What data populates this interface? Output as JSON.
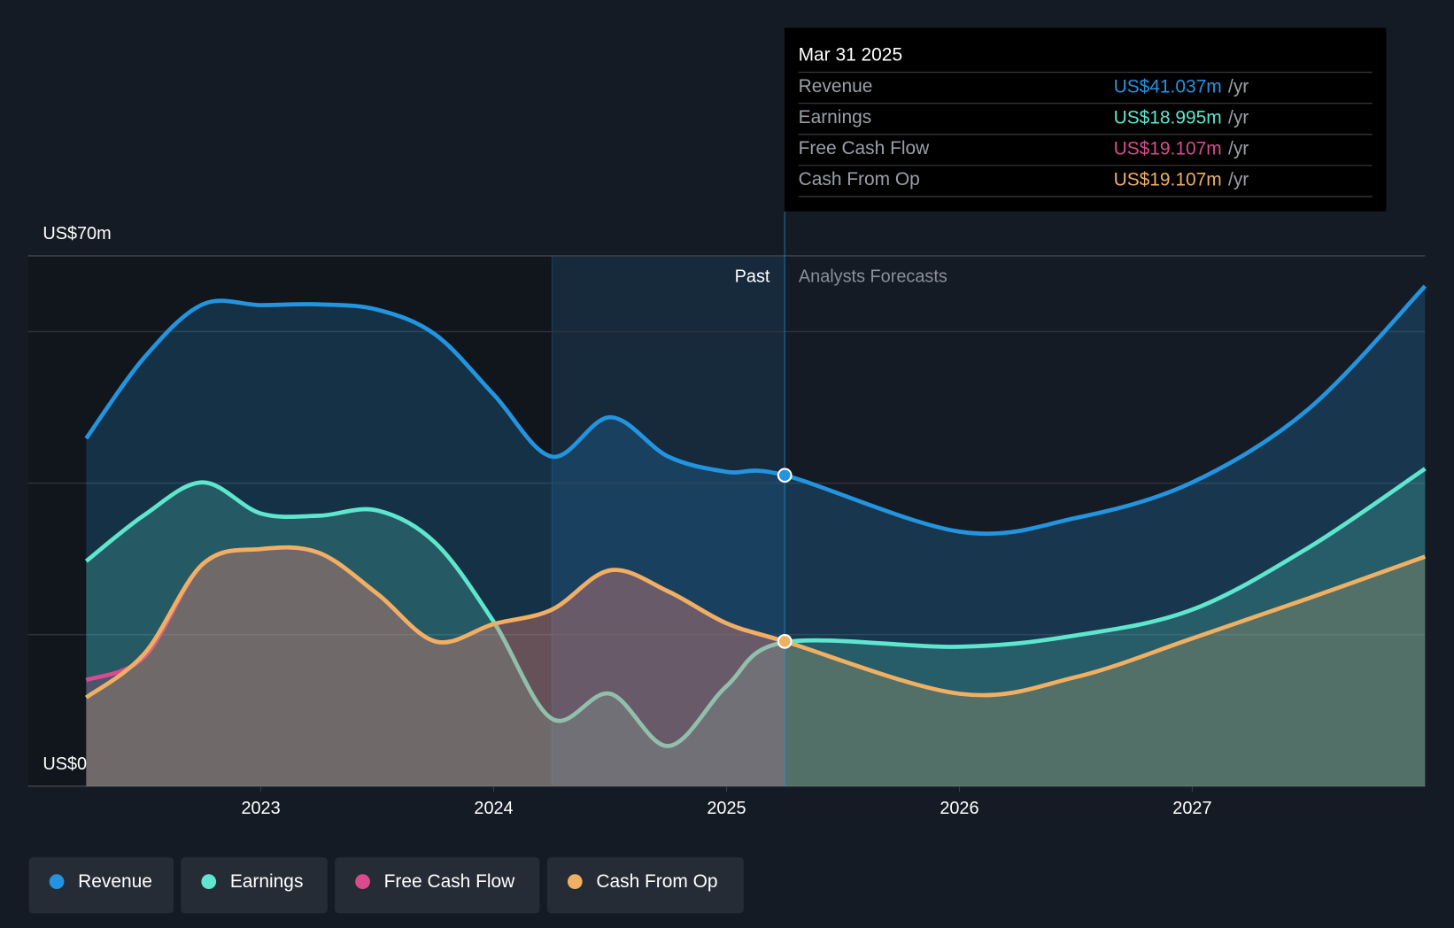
{
  "chart_data": {
    "type": "area-line",
    "x": [
      2022.25,
      2022.5,
      2022.75,
      2023,
      2023.25,
      2023.5,
      2023.75,
      2024,
      2024.25,
      2024.5,
      2024.75,
      2025,
      2025.25,
      2026,
      2026.5,
      2027,
      2027.5,
      2028
    ],
    "xlim": [
      2022,
      2028
    ],
    "xticks": [
      2023,
      2024,
      2025,
      2026,
      2027
    ],
    "ylim": [
      0,
      70
    ],
    "yticks": [
      {
        "value": 0,
        "label": "US$0"
      },
      {
        "value": 70,
        "label": "US$70m"
      }
    ],
    "ygrid": [
      20,
      40,
      60
    ],
    "past_label": "Past",
    "forecast_label": "Analysts Forecasts",
    "past_end": 2025.25,
    "highlight_start": 2024.25,
    "series": [
      {
        "name": "Revenue",
        "color": "#2394df",
        "values": [
          45.9,
          56.6,
          63.6,
          63.5,
          63.6,
          62.9,
          59.6,
          51.7,
          43.5,
          48.7,
          43.5,
          41.5,
          41.037,
          33.6,
          35.4,
          40.1,
          49.8,
          66.0
        ]
      },
      {
        "name": "Earnings",
        "color": "#5ee6cf",
        "values": [
          29.7,
          35.8,
          40.1,
          36.0,
          35.7,
          36.4,
          32.1,
          21.7,
          8.9,
          12.2,
          5.3,
          13.2,
          18.995,
          18.4,
          19.9,
          23.3,
          31.5,
          41.9
        ]
      },
      {
        "name": "Free Cash Flow",
        "color": "#d94b8d",
        "values": [
          14.0,
          17.1,
          29.3,
          31.3,
          30.8,
          25.4,
          19.1,
          21.4,
          23.3,
          28.5,
          25.7,
          21.5,
          19.107,
          null,
          null,
          null,
          null,
          null
        ]
      },
      {
        "name": "Cash From Op",
        "color": "#efb063",
        "values": [
          11.7,
          17.5,
          29.3,
          31.3,
          30.8,
          25.4,
          19.1,
          21.4,
          23.3,
          28.5,
          25.7,
          21.5,
          19.107,
          12.2,
          14.4,
          19.5,
          24.8,
          30.3
        ]
      }
    ],
    "tooltip": {
      "date": "Mar 31 2025",
      "rows": [
        {
          "label": "Revenue",
          "value": "US$41.037m",
          "unit": "/yr"
        },
        {
          "label": "Earnings",
          "value": "US$18.995m",
          "unit": "/yr"
        },
        {
          "label": "Free Cash Flow",
          "value": "US$19.107m",
          "unit": "/yr"
        },
        {
          "label": "Cash From Op",
          "value": "US$19.107m",
          "unit": "/yr"
        }
      ]
    }
  }
}
